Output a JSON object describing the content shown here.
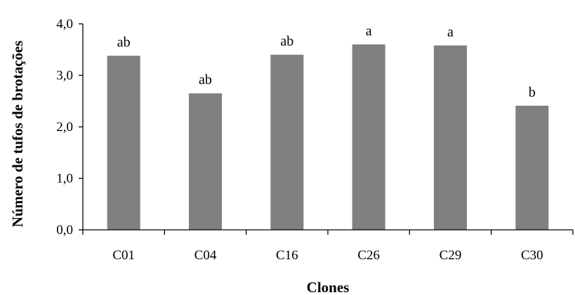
{
  "chart_data": {
    "type": "bar",
    "title": "",
    "xlabel": "Clones",
    "ylabel": "Número de tufos de brotações",
    "categories": [
      "C01",
      "C04",
      "C16",
      "C26",
      "C29",
      "C30"
    ],
    "values": [
      3.38,
      2.65,
      3.4,
      3.6,
      3.58,
      2.41
    ],
    "data_labels": [
      "ab",
      "ab",
      "ab",
      "a",
      "a",
      "b"
    ],
    "ylim": [
      0,
      4
    ],
    "yticks": [
      {
        "value": 0,
        "label": "0,0"
      },
      {
        "value": 1,
        "label": "1,0"
      },
      {
        "value": 2,
        "label": "2,0"
      },
      {
        "value": 3,
        "label": "3,0"
      },
      {
        "value": 4,
        "label": "4,0"
      }
    ],
    "grid": false,
    "legend": "none",
    "bar_color": "#808080"
  }
}
